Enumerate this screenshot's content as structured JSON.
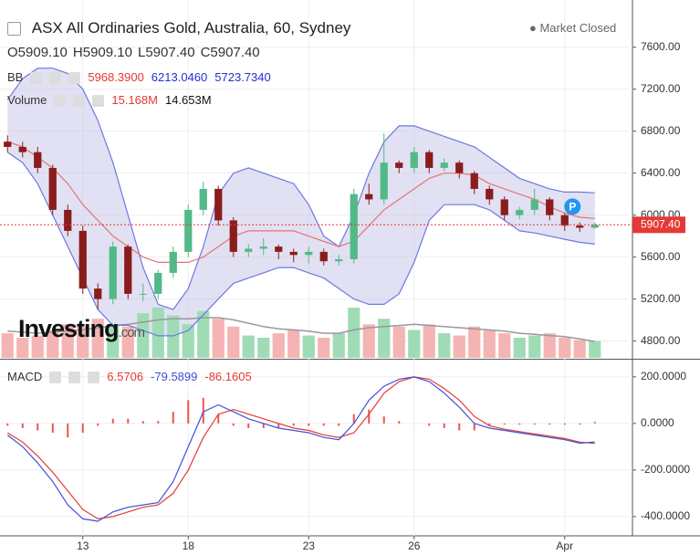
{
  "chart_data": [
    {
      "type": "candlestick",
      "title": "ASX All Ordinaries Gold, Australia, 60, Sydney",
      "status": "Market Closed",
      "header": {
        "ohlc": [
          {
            "key": "O",
            "text": "5909.10"
          },
          {
            "key": "H",
            "text": "5909.10"
          },
          {
            "key": "L",
            "text": "5907.40"
          },
          {
            "key": "C",
            "text": "5907.40"
          }
        ],
        "bb": {
          "name": "BB",
          "texts": [
            "5968.3900",
            "6213.0460",
            "5723.7340"
          ]
        },
        "volume": {
          "name": "Volume",
          "texts": [
            "15.168M",
            "14.653M"
          ]
        }
      },
      "watermark": "Investing",
      "watermark_suffix": ".com",
      "badge": "P",
      "categories": [
        null,
        null,
        null,
        null,
        null,
        "13",
        null,
        null,
        null,
        null,
        null,
        null,
        "18",
        null,
        null,
        null,
        null,
        null,
        null,
        null,
        "23",
        null,
        null,
        null,
        null,
        null,
        null,
        "26",
        null,
        null,
        null,
        null,
        null,
        null,
        null,
        null,
        null,
        "Apr",
        null,
        null
      ],
      "open": [
        6700,
        6650,
        6600,
        6450,
        6050,
        5850,
        5300,
        5200,
        5700,
        5250,
        5250,
        5450,
        5650,
        6050,
        6250,
        5950,
        5650,
        5680,
        5700,
        5650,
        5620,
        5650,
        5560,
        5580,
        6200,
        6150,
        6500,
        6450,
        6600,
        6450,
        6500,
        6400,
        6250,
        6150,
        6000,
        6050,
        6150,
        6000,
        5900,
        5880
      ],
      "high": [
        6760,
        6700,
        6650,
        6480,
        6100,
        5900,
        5350,
        5750,
        5720,
        5350,
        5480,
        5700,
        6100,
        6320,
        6280,
        5980,
        5720,
        5780,
        5720,
        5680,
        5700,
        5680,
        5620,
        6250,
        6300,
        6780,
        6520,
        6650,
        6620,
        6540,
        6520,
        6420,
        6280,
        6180,
        6080,
        6250,
        6170,
        6020,
        5930,
        5930
      ],
      "low": [
        6600,
        6550,
        6400,
        6000,
        5800,
        5250,
        5100,
        5150,
        5200,
        5180,
        5200,
        5400,
        5600,
        6000,
        5900,
        5600,
        5600,
        5620,
        5580,
        5550,
        5540,
        5520,
        5520,
        5540,
        6100,
        6100,
        6400,
        6400,
        6400,
        6420,
        6350,
        6200,
        6100,
        5950,
        5960,
        6000,
        5950,
        5850,
        5840,
        5870
      ],
      "close": [
        6650,
        6600,
        6450,
        6050,
        5850,
        5300,
        5200,
        5700,
        5250,
        5250,
        5450,
        5650,
        6050,
        6250,
        5950,
        5650,
        5680,
        5700,
        5650,
        5620,
        5650,
        5560,
        5580,
        6200,
        6150,
        6500,
        6450,
        6600,
        6450,
        6500,
        6400,
        6250,
        6150,
        6000,
        6050,
        6150,
        6000,
        5900,
        5880,
        5907.4
      ],
      "bands": {
        "middle": [
          6700,
          6650,
          6550,
          6450,
          6300,
          6100,
          5950,
          5800,
          5700,
          5600,
          5550,
          5550,
          5550,
          5600,
          5700,
          5800,
          5850,
          5850,
          5850,
          5850,
          5800,
          5750,
          5700,
          5750,
          5900,
          6050,
          6150,
          6250,
          6350,
          6400,
          6400,
          6380,
          6300,
          6250,
          6200,
          6150,
          6080,
          6020,
          5980,
          5968.39
        ],
        "upper": [
          7100,
          7300,
          7400,
          7400,
          7350,
          7200,
          6900,
          6500,
          6000,
          5500,
          5150,
          5100,
          5300,
          5700,
          6200,
          6400,
          6450,
          6400,
          6350,
          6300,
          6100,
          5800,
          5700,
          6000,
          6400,
          6700,
          6850,
          6850,
          6800,
          6750,
          6700,
          6650,
          6550,
          6450,
          6350,
          6300,
          6250,
          6220,
          6220,
          6213.046
        ],
        "lower": [
          6600,
          6500,
          6300,
          6000,
          5700,
          5400,
          5100,
          4950,
          4950,
          4900,
          4850,
          4850,
          4900,
          5050,
          5200,
          5350,
          5400,
          5450,
          5500,
          5500,
          5450,
          5400,
          5300,
          5200,
          5150,
          5150,
          5250,
          5550,
          5950,
          6100,
          6100,
          6100,
          6050,
          5950,
          5850,
          5830,
          5800,
          5770,
          5740,
          5723.734
        ]
      },
      "volume": [
        22,
        18,
        20,
        25,
        30,
        28,
        35,
        30,
        28,
        40,
        45,
        38,
        30,
        42,
        35,
        28,
        20,
        18,
        22,
        25,
        20,
        18,
        22,
        45,
        30,
        35,
        28,
        25,
        30,
        22,
        20,
        28,
        25,
        22,
        18,
        20,
        22,
        18,
        16,
        15.168
      ],
      "volume_ma": [
        24,
        23,
        22,
        23,
        24,
        25,
        27,
        29,
        30,
        32,
        34,
        35,
        35,
        36,
        36,
        34,
        31,
        28,
        26,
        25,
        24,
        22,
        22,
        25,
        27,
        28,
        29,
        30,
        29,
        28,
        27,
        26,
        25,
        24,
        22,
        21,
        20,
        19,
        17,
        14.653
      ],
      "last_price": {
        "value": 5907.4,
        "label": "5907.40"
      },
      "ylim": [
        4640,
        8050
      ],
      "yticks": [
        {
          "value": 4800,
          "label": "4800.00"
        },
        {
          "value": 5200,
          "label": "5200.00"
        },
        {
          "value": 5600,
          "label": "5600.00"
        },
        {
          "value": 6000,
          "label": "6000.00"
        },
        {
          "value": 6400,
          "label": "6400.00"
        },
        {
          "value": 6800,
          "label": "6800.00"
        },
        {
          "value": 7200,
          "label": "7200.00"
        },
        {
          "value": 7600,
          "label": "7600.00"
        }
      ],
      "colors": {
        "up": "#53b987",
        "down": "#8b1c1c",
        "band": "#6e78e0",
        "middle": "#e57373",
        "fill": "#c9c9ea",
        "volume_up": "#9fdcb6",
        "volume_down": "#f4b4b4",
        "volume_ma": "#999999",
        "last": "#e53935"
      },
      "grid": true
    },
    {
      "type": "macd",
      "name": "MACD",
      "texts": [
        "6.5706",
        "-79.5899",
        "-86.1605"
      ],
      "macd": [
        -50,
        -100,
        -170,
        -250,
        -350,
        -410,
        -420,
        -380,
        -360,
        -350,
        -340,
        -250,
        -100,
        50,
        80,
        50,
        20,
        0,
        -20,
        -30,
        -40,
        -60,
        -70,
        0,
        100,
        160,
        190,
        200,
        180,
        130,
        70,
        0,
        -20,
        -30,
        -40,
        -50,
        -60,
        -70,
        -85,
        -79.5899
      ],
      "signal": [
        -40,
        -80,
        -140,
        -210,
        -290,
        -370,
        -410,
        -400,
        -380,
        -360,
        -350,
        -300,
        -200,
        -60,
        40,
        60,
        40,
        20,
        0,
        -20,
        -30,
        -50,
        -60,
        -40,
        40,
        130,
        180,
        200,
        190,
        150,
        100,
        30,
        -10,
        -25,
        -35,
        -45,
        -55,
        -65,
        -80,
        -86.1605
      ],
      "histogram": [
        -10,
        -20,
        -30,
        -40,
        -60,
        -40,
        -10,
        20,
        20,
        10,
        10,
        50,
        100,
        110,
        40,
        -10,
        -20,
        -20,
        -20,
        -10,
        -10,
        -10,
        -10,
        40,
        60,
        30,
        10,
        0,
        -10,
        -20,
        -30,
        -30,
        -10,
        -5,
        -5,
        -5,
        -5,
        -5,
        -5,
        6.5706
      ],
      "ylim": [
        -475,
        270
      ],
      "yticks": [
        {
          "value": -400,
          "label": "-400.0000"
        },
        {
          "value": -200,
          "label": "-200.0000"
        },
        {
          "value": 0,
          "label": "0.0000"
        },
        {
          "value": 200,
          "label": "200.0000"
        }
      ],
      "colors": {
        "macd": "#3f51d6",
        "signal": "#e53935",
        "histogram": "#ef5350"
      }
    }
  ]
}
